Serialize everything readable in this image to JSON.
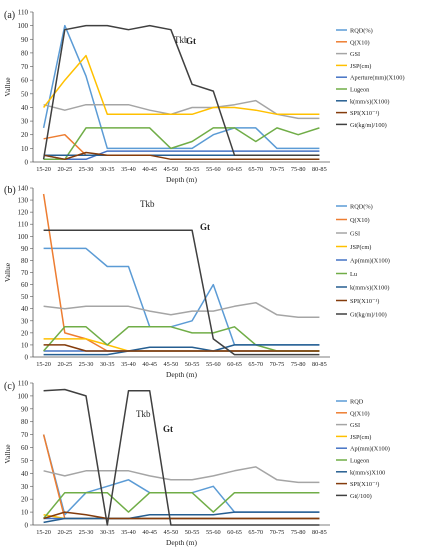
{
  "figure": {
    "title": "",
    "x_categories": [
      "15-20",
      "20-25",
      "25-30",
      "30-35",
      "35-40",
      "40-45",
      "45-50",
      "50-55",
      "55-60",
      "60-65",
      "65-70",
      "70-75",
      "75-80",
      "80-85"
    ]
  },
  "chart_data": [
    {
      "panel_label": "(a)",
      "type": "line",
      "xlabel": "Depth (m)",
      "ylabel": "Vallue",
      "ylim": [
        0,
        110
      ],
      "yticks": [
        0,
        10,
        20,
        30,
        40,
        50,
        60,
        70,
        80,
        90,
        100,
        110
      ],
      "grid": false,
      "legend": "right",
      "annotations": [
        "Tkb",
        "Gt"
      ],
      "categories": [
        "15-20",
        "20-25",
        "25-30",
        "30-35",
        "35-40",
        "40-45",
        "45-50",
        "50-55",
        "55-60",
        "60-65",
        "65-70",
        "70-75",
        "75-80",
        "80-85"
      ],
      "series": [
        {
          "name": "RQD(%)",
          "color": "#5b9bd5",
          "values": [
            25,
            100,
            63,
            10,
            10,
            10,
            10,
            10,
            20,
            25,
            25,
            10,
            10,
            10
          ]
        },
        {
          "name": "Q(X10)",
          "color": "#ed7d31",
          "values": [
            17,
            20,
            5,
            5,
            5,
            5,
            5,
            5,
            5,
            5,
            5,
            5,
            5,
            5
          ]
        },
        {
          "name": "GSI",
          "color": "#a5a5a5",
          "values": [
            42,
            38,
            42,
            42,
            42,
            38,
            35,
            40,
            40,
            42,
            45,
            35,
            32,
            32
          ]
        },
        {
          "name": "JSP(cm)",
          "color": "#ffc000",
          "values": [
            40,
            60,
            78,
            35,
            35,
            35,
            35,
            35,
            40,
            40,
            38,
            35,
            35,
            35
          ]
        },
        {
          "name": "Aperture(mm)(X100)",
          "color": "#4472c4",
          "values": [
            5,
            2,
            2,
            8,
            8,
            8,
            8,
            8,
            8,
            8,
            8,
            8,
            8,
            8
          ]
        },
        {
          "name": "Lugeon",
          "color": "#70ad47",
          "values": [
            2,
            2,
            25,
            25,
            25,
            25,
            10,
            15,
            25,
            25,
            15,
            25,
            20,
            25
          ]
        },
        {
          "name": "k(mm/s)(X100)",
          "color": "#255e91",
          "values": [
            5,
            5,
            5,
            5,
            5,
            5,
            5,
            5,
            5,
            5,
            5,
            5,
            5,
            5
          ]
        },
        {
          "name": "SPI(X10⁻¹)",
          "color": "#843c0c",
          "values": [
            5,
            2,
            7,
            5,
            5,
            5,
            2,
            2,
            2,
            2,
            2,
            2,
            2,
            2
          ]
        },
        {
          "name": "Gt(kg/m)/100)",
          "color": "#404040",
          "values": [
            2,
            97,
            100,
            100,
            97,
            100,
            97,
            57,
            52,
            5,
            5,
            5,
            5,
            5
          ]
        }
      ]
    },
    {
      "panel_label": "(b)",
      "type": "line",
      "xlabel": "Depth (m)",
      "ylabel": "Vallue",
      "ylim": [
        0,
        140
      ],
      "yticks": [
        0,
        10,
        20,
        30,
        40,
        50,
        60,
        70,
        80,
        90,
        100,
        110,
        120,
        130,
        140
      ],
      "grid": false,
      "legend": "right",
      "annotations": [
        "Tkb",
        "Gt"
      ],
      "categories": [
        "15-20",
        "20-25",
        "25-30",
        "30-35",
        "35-40",
        "40-45",
        "45-50",
        "50-55",
        "55-60",
        "60-65",
        "65-70",
        "70-75",
        "75-80",
        "80-85"
      ],
      "series": [
        {
          "name": "RQD(%)",
          "color": "#5b9bd5",
          "values": [
            90,
            90,
            90,
            75,
            75,
            25,
            25,
            30,
            60,
            10,
            10,
            10,
            10,
            10
          ]
        },
        {
          "name": "Q(X10)",
          "color": "#ed7d31",
          "values": [
            135,
            20,
            15,
            5,
            5,
            5,
            5,
            5,
            5,
            5,
            5,
            5,
            5,
            5
          ]
        },
        {
          "name": "GSI",
          "color": "#a5a5a5",
          "values": [
            42,
            40,
            42,
            42,
            42,
            38,
            35,
            38,
            38,
            42,
            45,
            35,
            33,
            33
          ]
        },
        {
          "name": "JSP(cm)",
          "color": "#ffc000",
          "values": [
            15,
            15,
            15,
            10,
            5,
            5,
            5,
            5,
            5,
            5,
            5,
            5,
            5,
            5
          ]
        },
        {
          "name": "Ap(mm)(X100)",
          "color": "#4472c4",
          "values": [
            5,
            5,
            5,
            5,
            5,
            5,
            5,
            5,
            5,
            5,
            5,
            5,
            5,
            5
          ]
        },
        {
          "name": "Lu",
          "color": "#70ad47",
          "values": [
            5,
            25,
            25,
            10,
            25,
            25,
            25,
            20,
            20,
            25,
            10,
            5,
            5,
            5
          ]
        },
        {
          "name": "k(mm/s)(X100)",
          "color": "#255e91",
          "values": [
            2,
            2,
            2,
            2,
            5,
            8,
            8,
            8,
            5,
            10,
            10,
            10,
            10,
            10
          ]
        },
        {
          "name": "SPI(X10⁻¹)",
          "color": "#843c0c",
          "values": [
            10,
            10,
            5,
            5,
            5,
            5,
            5,
            5,
            5,
            5,
            5,
            5,
            5,
            5
          ]
        },
        {
          "name": "Gt(kg/m)/100)",
          "color": "#404040",
          "values": [
            105,
            105,
            105,
            105,
            105,
            105,
            105,
            105,
            15,
            2,
            2,
            2,
            2,
            2
          ]
        }
      ]
    },
    {
      "panel_label": "(c)",
      "type": "line",
      "xlabel": "Depth (m)",
      "ylabel": "Vallue",
      "ylim": [
        0,
        110
      ],
      "yticks": [
        0,
        10,
        20,
        30,
        40,
        50,
        60,
        70,
        80,
        90,
        100,
        110
      ],
      "grid": false,
      "legend": "right",
      "annotations": [
        "Tkb",
        "Gt"
      ],
      "categories": [
        "15-20",
        "20-25",
        "25-30",
        "30-35",
        "35-40",
        "40-45",
        "45-50",
        "50-55",
        "55-60",
        "60-65",
        "65-70",
        "70-75",
        "75-80",
        "80-85"
      ],
      "series": [
        {
          "name": "RQD",
          "color": "#5b9bd5",
          "values": [
            70,
            8,
            25,
            30,
            35,
            25,
            25,
            25,
            30,
            10,
            10,
            10,
            10,
            10
          ]
        },
        {
          "name": "Q(X10)",
          "color": "#ed7d31",
          "values": [
            70,
            5,
            5,
            5,
            5,
            5,
            5,
            5,
            5,
            5,
            5,
            5,
            5,
            5
          ]
        },
        {
          "name": "GSI",
          "color": "#a5a5a5",
          "values": [
            42,
            38,
            42,
            42,
            42,
            38,
            35,
            35,
            38,
            42,
            45,
            35,
            33,
            33
          ]
        },
        {
          "name": "JSP(cm)",
          "color": "#ffc000",
          "values": [
            8,
            5,
            5,
            5,
            5,
            5,
            5,
            5,
            5,
            5,
            5,
            5,
            5,
            5
          ]
        },
        {
          "name": "Ap(mm)(X100)",
          "color": "#4472c4",
          "values": [
            5,
            5,
            5,
            5,
            5,
            5,
            5,
            5,
            5,
            5,
            5,
            5,
            5,
            5
          ]
        },
        {
          "name": "Lugeon",
          "color": "#70ad47",
          "values": [
            5,
            25,
            25,
            25,
            10,
            25,
            25,
            25,
            10,
            25,
            25,
            25,
            25,
            25
          ]
        },
        {
          "name": "k(mm/s)X100",
          "color": "#255e91",
          "values": [
            2,
            5,
            5,
            5,
            5,
            8,
            8,
            8,
            8,
            10,
            10,
            10,
            10,
            10
          ]
        },
        {
          "name": "SPI(X10⁻¹)",
          "color": "#843c0c",
          "values": [
            5,
            10,
            8,
            5,
            5,
            5,
            5,
            5,
            5,
            5,
            5,
            5,
            5,
            5
          ]
        },
        {
          "name": "Gt(/100)",
          "color": "#404040",
          "values": [
            104,
            105,
            100,
            0,
            104,
            104,
            0,
            0,
            0,
            0,
            0,
            0,
            0,
            0
          ]
        }
      ]
    }
  ]
}
